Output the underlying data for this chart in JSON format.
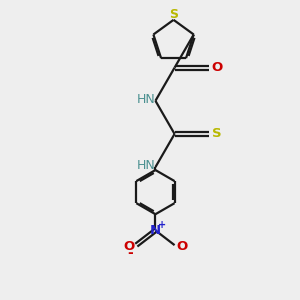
{
  "bg_color": "#eeeeee",
  "bond_color": "#1a1a1a",
  "S_color": "#b8b800",
  "N_color": "#4a9090",
  "O_color": "#cc0000",
  "N_nitro_color": "#2222cc",
  "O_nitro_color": "#cc0000",
  "line_width": 1.6,
  "dbo": 0.07,
  "xlim": [
    0,
    10
  ],
  "ylim": [
    0,
    10
  ]
}
